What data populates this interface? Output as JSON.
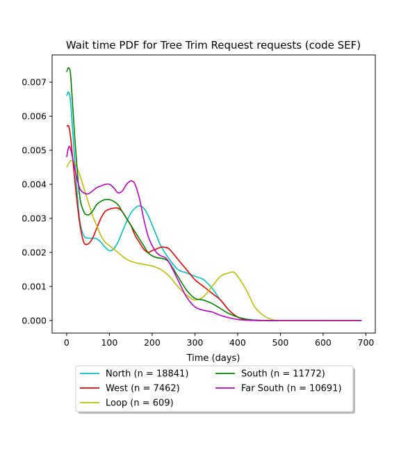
{
  "chart_data": {
    "type": "line",
    "title": "Wait time PDF for Tree Trim Request  requests (code SEF)",
    "xlabel": "Time (days)",
    "ylabel": "",
    "xlim": [
      -34,
      722
    ],
    "ylim": [
      -0.00037,
      0.0078
    ],
    "xticks": [
      0,
      100,
      200,
      300,
      400,
      500,
      600,
      700
    ],
    "yticks": [
      0.0,
      0.001,
      0.002,
      0.003,
      0.004,
      0.005,
      0.006,
      0.007
    ],
    "ytick_labels": [
      "0.000",
      "0.001",
      "0.002",
      "0.003",
      "0.004",
      "0.005",
      "0.006",
      "0.007"
    ],
    "grid": false,
    "legend_placement": "below-center",
    "series": [
      {
        "name": "North (n = 18841)",
        "color": "#00bfbf",
        "x": [
          0,
          5,
          10,
          20,
          30,
          40,
          50,
          60,
          70,
          80,
          90,
          100,
          110,
          120,
          130,
          140,
          150,
          160,
          170,
          180,
          190,
          200,
          210,
          220,
          240,
          260,
          280,
          300,
          320,
          340,
          360,
          380,
          400,
          420,
          440,
          460,
          500,
          600,
          690
        ],
        "y": [
          0.0066,
          0.0067,
          0.0063,
          0.0045,
          0.003,
          0.0025,
          0.00242,
          0.00242,
          0.0024,
          0.0023,
          0.00215,
          0.00205,
          0.0021,
          0.0023,
          0.0026,
          0.0029,
          0.00315,
          0.0033,
          0.00337,
          0.0033,
          0.0031,
          0.0028,
          0.0025,
          0.0022,
          0.0018,
          0.0015,
          0.0014,
          0.0013,
          0.0012,
          0.00095,
          0.0006,
          0.0003,
          0.0001,
          3e-05,
          1e-05,
          0.0,
          0.0,
          0.0,
          0.0
        ]
      },
      {
        "name": "West (n = 7462)",
        "color": "#ee0000",
        "x": [
          0,
          5,
          10,
          20,
          30,
          40,
          50,
          60,
          70,
          80,
          90,
          100,
          110,
          120,
          130,
          140,
          150,
          160,
          170,
          180,
          190,
          200,
          210,
          220,
          230,
          240,
          260,
          280,
          300,
          320,
          340,
          360,
          380,
          400,
          420,
          440,
          460,
          500,
          600,
          690
        ],
        "y": [
          0.0057,
          0.0057,
          0.0053,
          0.004,
          0.0029,
          0.0023,
          0.00225,
          0.0024,
          0.0027,
          0.003,
          0.0032,
          0.00327,
          0.0033,
          0.0033,
          0.0032,
          0.003,
          0.0028,
          0.0025,
          0.0023,
          0.0021,
          0.002,
          0.00205,
          0.0021,
          0.00215,
          0.00215,
          0.0021,
          0.0018,
          0.0015,
          0.0012,
          0.001,
          0.0008,
          0.0006,
          0.0003,
          0.0001,
          3e-05,
          1e-05,
          0.0,
          0.0,
          0.0,
          0.0
        ]
      },
      {
        "name": "Loop (n = 609)",
        "color": "#bfbf00",
        "x": [
          0,
          10,
          20,
          30,
          40,
          50,
          60,
          70,
          80,
          90,
          100,
          110,
          120,
          140,
          160,
          180,
          200,
          220,
          240,
          260,
          280,
          300,
          320,
          340,
          360,
          380,
          390,
          400,
          420,
          440,
          460,
          480,
          500,
          600,
          690
        ],
        "y": [
          0.0045,
          0.0047,
          0.0046,
          0.0043,
          0.0039,
          0.0035,
          0.0031,
          0.0028,
          0.0025,
          0.0023,
          0.0022,
          0.0021,
          0.002,
          0.0018,
          0.0017,
          0.00165,
          0.0016,
          0.0015,
          0.0013,
          0.001,
          0.00075,
          0.0006,
          0.0007,
          0.001,
          0.0013,
          0.0014,
          0.00142,
          0.0013,
          0.0009,
          0.0004,
          0.00015,
          3e-05,
          0.0,
          0.0,
          0.0
        ]
      },
      {
        "name": "South (n = 11772)",
        "color": "#008000",
        "x": [
          0,
          3,
          6,
          10,
          20,
          30,
          40,
          50,
          60,
          70,
          80,
          90,
          100,
          110,
          120,
          130,
          140,
          150,
          160,
          170,
          180,
          190,
          200,
          210,
          220,
          230,
          240,
          260,
          280,
          300,
          320,
          340,
          360,
          380,
          400,
          420,
          440,
          460,
          500,
          600,
          690
        ],
        "y": [
          0.0073,
          0.0074,
          0.0074,
          0.0071,
          0.0052,
          0.0037,
          0.0032,
          0.0031,
          0.0032,
          0.0034,
          0.0035,
          0.00355,
          0.00355,
          0.0035,
          0.0034,
          0.0032,
          0.003,
          0.0028,
          0.0026,
          0.0024,
          0.0022,
          0.002,
          0.0019,
          0.00185,
          0.00183,
          0.0018,
          0.0017,
          0.0013,
          0.0009,
          0.00065,
          0.0006,
          0.0005,
          0.00035,
          0.0002,
          0.0001,
          4e-05,
          1e-05,
          0.0,
          0.0,
          0.0,
          0.0
        ]
      },
      {
        "name": "Far South (n = 10691)",
        "color": "#bf00bf",
        "x": [
          0,
          5,
          10,
          20,
          30,
          40,
          50,
          60,
          70,
          80,
          90,
          100,
          110,
          120,
          130,
          140,
          150,
          155,
          160,
          170,
          180,
          190,
          200,
          210,
          220,
          230,
          240,
          260,
          280,
          300,
          320,
          340,
          360,
          380,
          400,
          420,
          440,
          460,
          500,
          600,
          690
        ],
        "y": [
          0.0048,
          0.0051,
          0.005,
          0.0044,
          0.0039,
          0.00375,
          0.00372,
          0.0038,
          0.0039,
          0.00395,
          0.004,
          0.004,
          0.0039,
          0.00375,
          0.0038,
          0.004,
          0.0041,
          0.00408,
          0.004,
          0.0036,
          0.003,
          0.0025,
          0.0022,
          0.002,
          0.0019,
          0.00185,
          0.0017,
          0.0012,
          0.0007,
          0.0004,
          0.0003,
          0.00025,
          0.00015,
          8e-05,
          3e-05,
          1e-05,
          0.0,
          0.0,
          0.0,
          0.0,
          0.0
        ]
      }
    ]
  }
}
